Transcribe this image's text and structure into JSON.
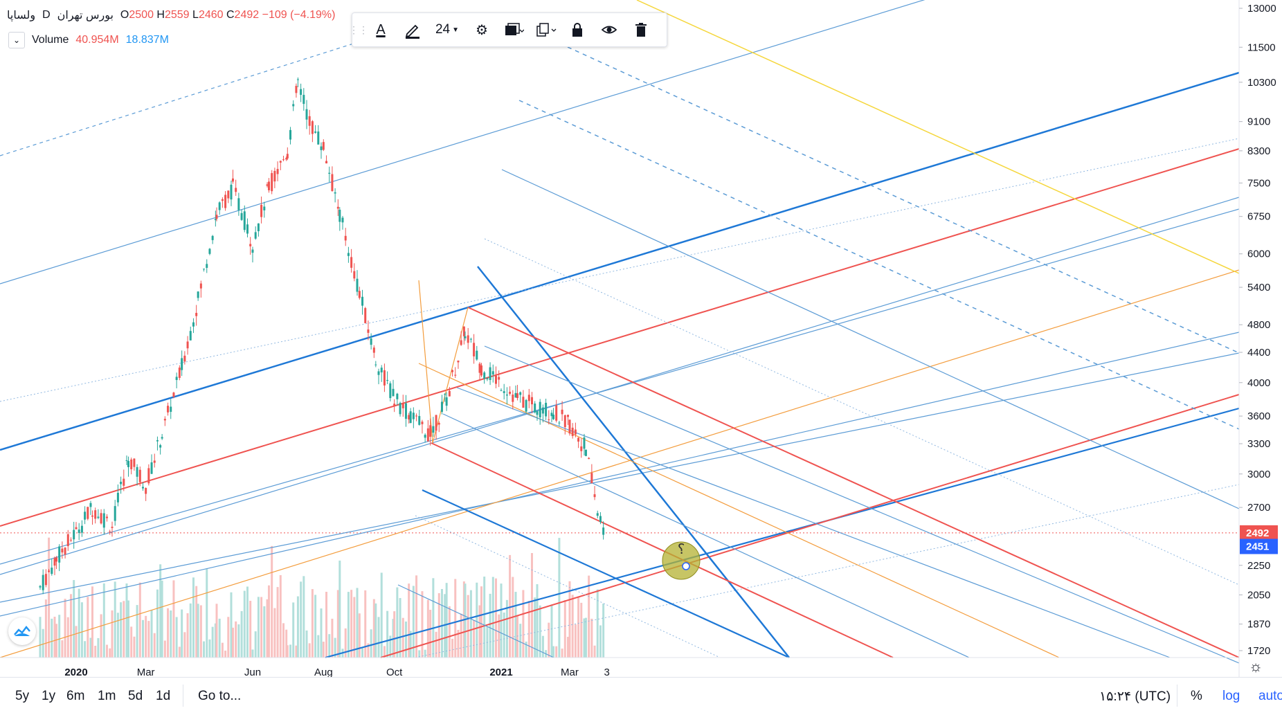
{
  "legend": {
    "symbol": "ولساپا",
    "interval": "D",
    "exchange": "بورس تهران",
    "open_label": "O",
    "open_value": "2500",
    "high_label": "H",
    "high_value": "2559",
    "low_label": "L",
    "low_value": "2460",
    "close_label": "C",
    "close_value": "2492",
    "change": "−109 (−4.19%)"
  },
  "volume_legend": {
    "label": "Volume",
    "value1": "40.954M",
    "value2": "18.837M"
  },
  "toolbar": {
    "text_icon": "A",
    "size": "24",
    "icons": [
      "text-icon",
      "pencil-icon",
      "gear-icon",
      "layers-icon",
      "copy-icon",
      "lock-icon",
      "eye-icon",
      "trash-icon"
    ]
  },
  "chart_data": {
    "type": "candlestick",
    "scale": "log",
    "ylim": [
      1650,
      13500
    ],
    "y_ticks": [
      "13000",
      "11500",
      "10300",
      "9100",
      "8300",
      "7500",
      "6750",
      "6000",
      "5400",
      "4800",
      "4400",
      "4000",
      "3600",
      "3300",
      "3000",
      "2700",
      "2250",
      "2050",
      "1870",
      "1720"
    ],
    "x_ticks": [
      "2020",
      "Mar",
      "Jun",
      "Aug",
      "Oct",
      "2021",
      "Mar",
      "3"
    ],
    "price_labels": [
      {
        "value": "2492",
        "color": "#ef5350"
      },
      {
        "value": "2451",
        "color": "#2962ff"
      }
    ],
    "annotation_text": "؟",
    "series": [
      {
        "name": "ولساپا",
        "points": [
          [
            "2019-12-01",
            2100
          ],
          [
            "2019-12-15",
            2300
          ],
          [
            "2020-01-01",
            2500
          ],
          [
            "2020-01-15",
            2700
          ],
          [
            "2020-02-01",
            2550
          ],
          [
            "2020-02-15",
            3150
          ],
          [
            "2020-03-01",
            2900
          ],
          [
            "2020-03-15",
            3400
          ],
          [
            "2020-04-01",
            4200
          ],
          [
            "2020-04-15",
            5200
          ],
          [
            "2020-05-01",
            6800
          ],
          [
            "2020-05-15",
            7400
          ],
          [
            "2020-06-01",
            6200
          ],
          [
            "2020-06-15",
            7400
          ],
          [
            "2020-07-01",
            8300
          ],
          [
            "2020-07-10",
            10300
          ],
          [
            "2020-07-20",
            9100
          ],
          [
            "2020-08-01",
            8400
          ],
          [
            "2020-08-15",
            6800
          ],
          [
            "2020-09-01",
            5300
          ],
          [
            "2020-09-15",
            4300
          ],
          [
            "2020-10-01",
            3800
          ],
          [
            "2020-10-15",
            3600
          ],
          [
            "2020-11-01",
            3400
          ],
          [
            "2020-11-15",
            3800
          ],
          [
            "2020-12-01",
            4700
          ],
          [
            "2020-12-15",
            4200
          ],
          [
            "2021-01-01",
            4000
          ],
          [
            "2021-01-15",
            3800
          ],
          [
            "2021-02-01",
            3700
          ],
          [
            "2021-02-15",
            3650
          ],
          [
            "2021-03-01",
            3500
          ],
          [
            "2021-03-15",
            3250
          ],
          [
            "2021-03-25",
            2650
          ],
          [
            "2021-04-01",
            2492
          ]
        ]
      }
    ]
  },
  "bottom_bar": {
    "ranges": [
      "5y",
      "1y",
      "6m",
      "1m",
      "5d",
      "1d"
    ],
    "goto": "Go to...",
    "clock": "۱۵:۲۴ (UTC)",
    "percent": "%",
    "log": "log",
    "auto": "auto"
  }
}
